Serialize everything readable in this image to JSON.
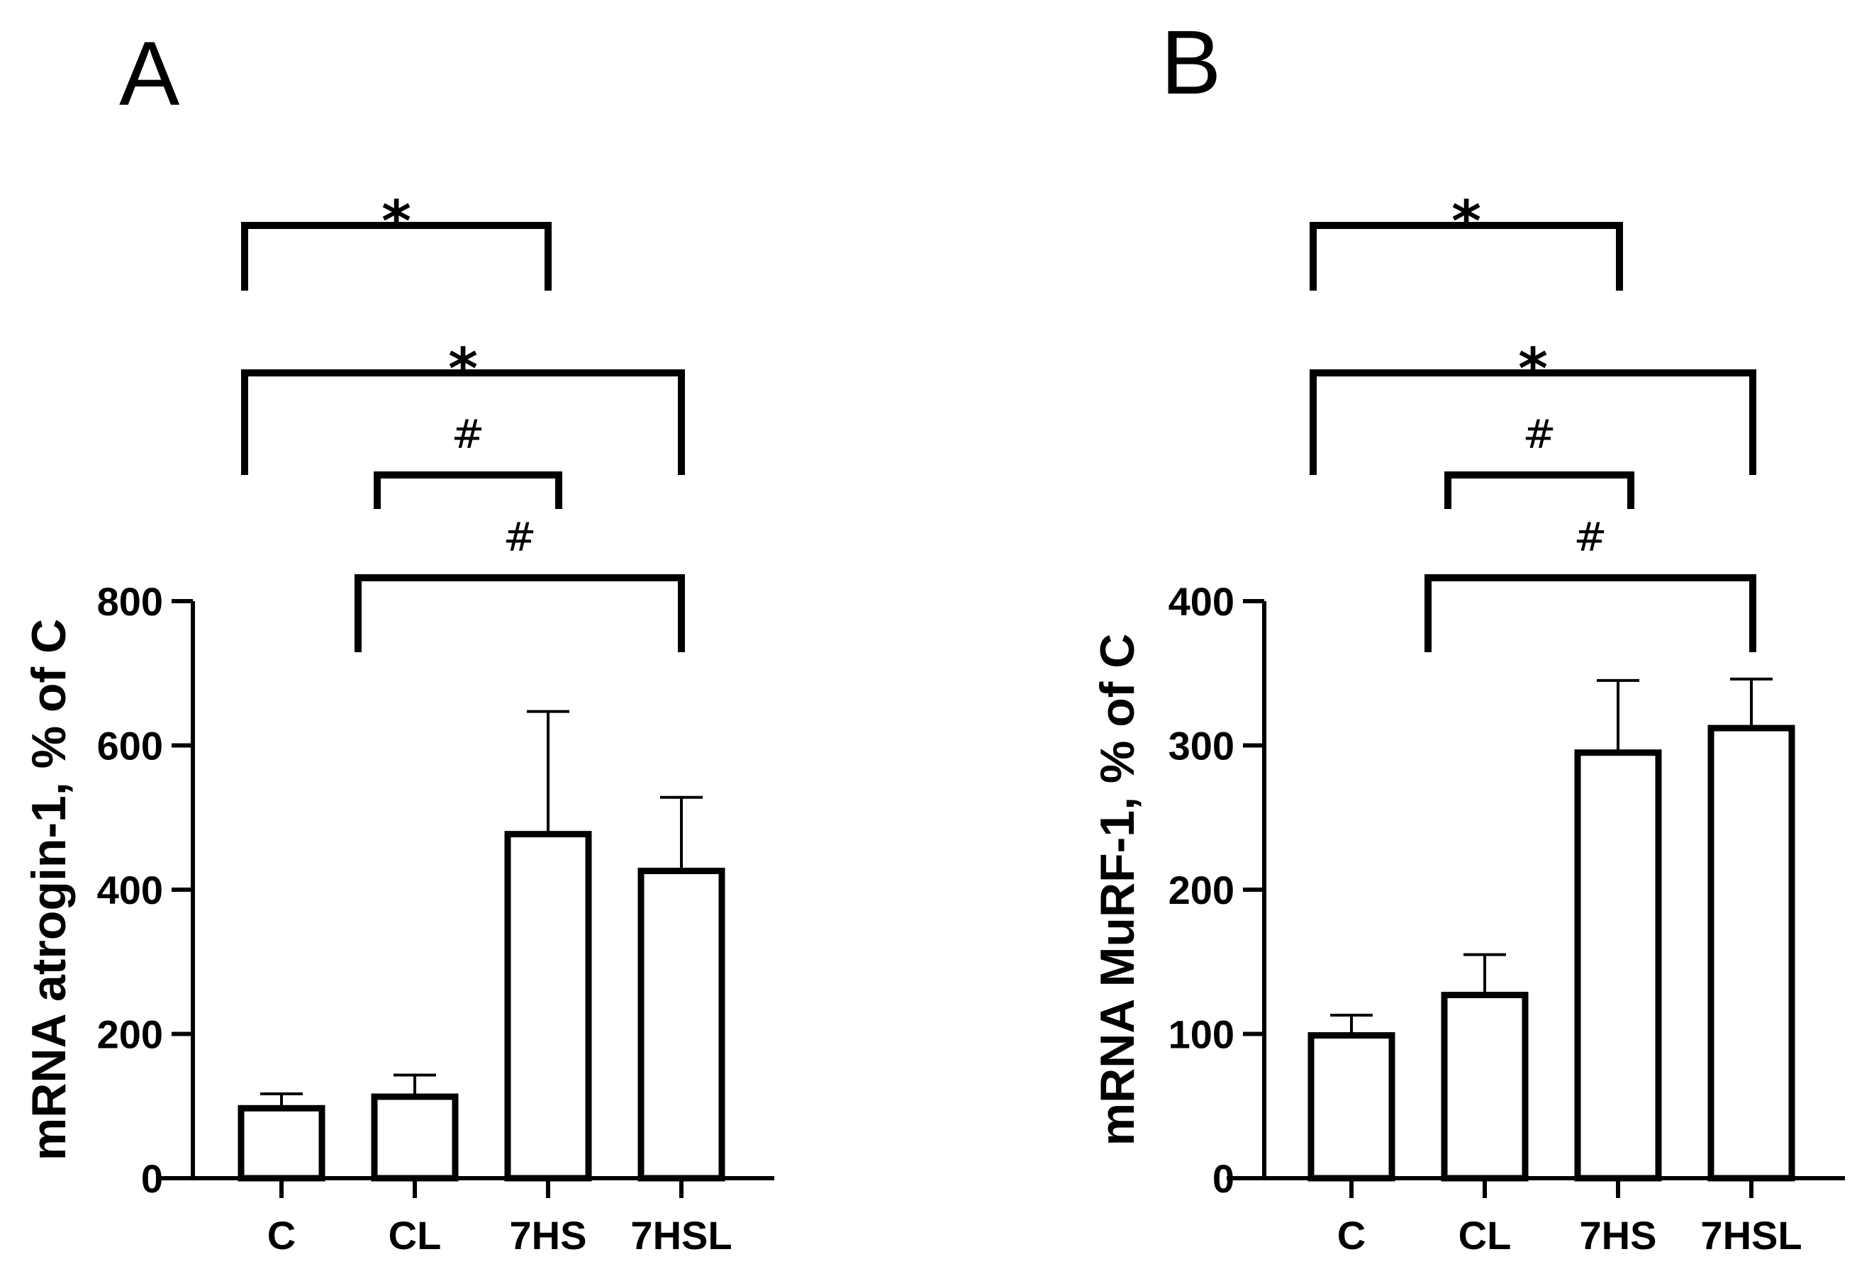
{
  "chart_data": [
    {
      "type": "bar",
      "panel_label": "A",
      "title": "",
      "xlabel": "",
      "ylabel": "mRNA atrogin-1, % of C",
      "categories": [
        "C",
        "CL",
        "7HS",
        "7HSL"
      ],
      "values": [
        97,
        113,
        477,
        426
      ],
      "errors": [
        20,
        30,
        170,
        102
      ],
      "ylim": [
        0,
        800
      ],
      "yticks": [
        0,
        200,
        400,
        600,
        800
      ],
      "comparisons": [
        {
          "from": 0,
          "to": 2,
          "symbol": "*"
        },
        {
          "from": 0,
          "to": 3,
          "symbol": "*"
        },
        {
          "from": 1,
          "to": 2,
          "symbol": "#"
        },
        {
          "from": 1,
          "to": 3,
          "symbol": "#"
        }
      ]
    },
    {
      "type": "bar",
      "panel_label": "B",
      "title": "",
      "xlabel": "",
      "ylabel": "mRNA MuRF-1, % of C",
      "categories": [
        "C",
        "CL",
        "7HS",
        "7HSL"
      ],
      "values": [
        99,
        127,
        295,
        312
      ],
      "errors": [
        14,
        28,
        50,
        34
      ],
      "ylim": [
        0,
        400
      ],
      "yticks": [
        0,
        100,
        200,
        300,
        400
      ],
      "comparisons": [
        {
          "from": 0,
          "to": 2,
          "symbol": "*"
        },
        {
          "from": 0,
          "to": 3,
          "symbol": "*"
        },
        {
          "from": 1,
          "to": 2,
          "symbol": "#"
        },
        {
          "from": 1,
          "to": 3,
          "symbol": "#"
        }
      ]
    }
  ]
}
